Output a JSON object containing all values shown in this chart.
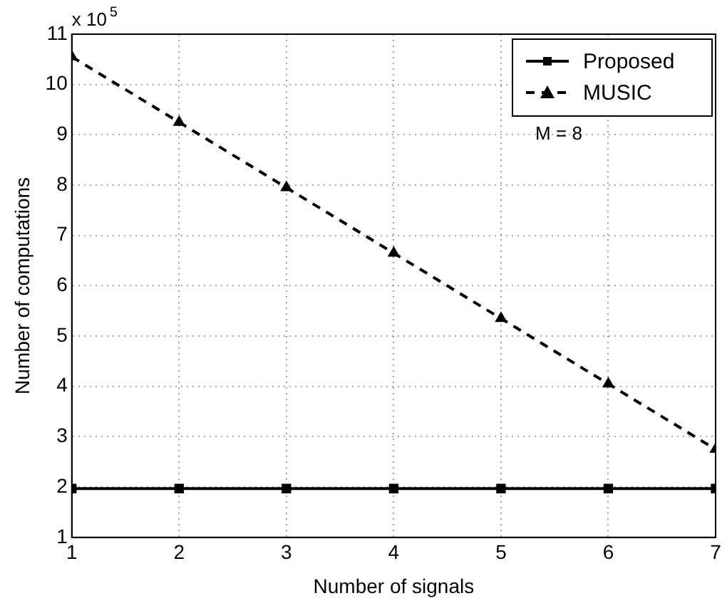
{
  "chart_data": {
    "type": "line",
    "xlabel": "Number of signals",
    "ylabel": "Number of computations",
    "x": [
      1,
      2,
      3,
      4,
      5,
      6,
      7
    ],
    "series": [
      {
        "name": "Proposed",
        "color": "#000000",
        "marker": "square",
        "line_style": "solid",
        "values": [
          1.97,
          1.97,
          1.97,
          1.97,
          1.97,
          1.97,
          1.97
        ]
      },
      {
        "name": "MUSIC",
        "color": "#000000",
        "marker": "triangle",
        "line_style": "dashed",
        "values": [
          10.55,
          9.25,
          7.95,
          6.65,
          5.35,
          4.05,
          2.75
        ]
      }
    ],
    "xlim": [
      1,
      7
    ],
    "xticks": [
      1,
      2,
      3,
      4,
      5,
      6,
      7
    ],
    "ylim": [
      1,
      11
    ],
    "yticks": [
      1,
      2,
      3,
      4,
      5,
      6,
      7,
      8,
      9,
      10,
      11
    ],
    "annotations": [
      "x 10$^{5}$",
      "M = 8"
    ],
    "grid": true,
    "legend": "top right"
  }
}
